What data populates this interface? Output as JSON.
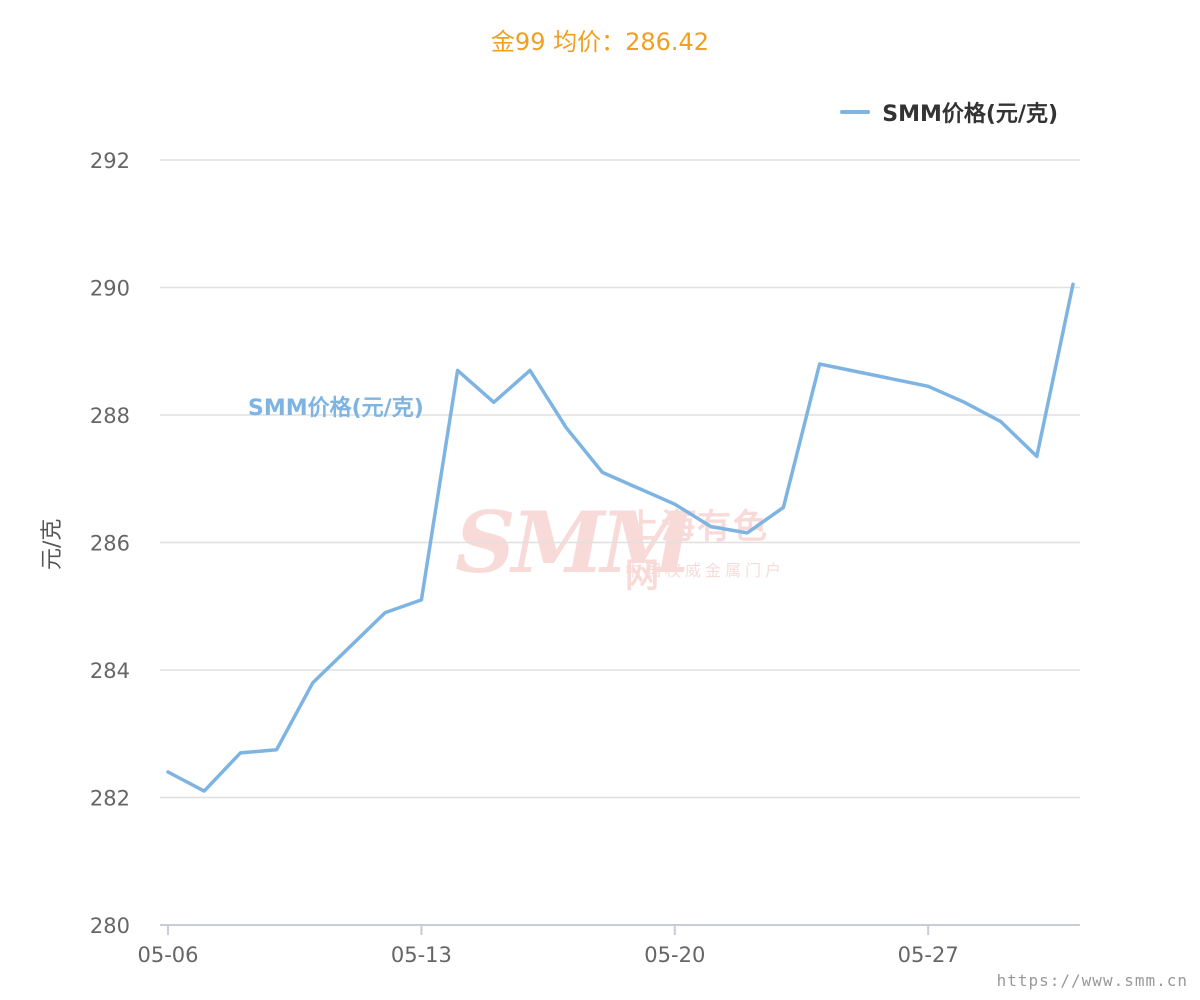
{
  "title": "金99 均价：286.42",
  "legend": {
    "label": "SMM价格(元/克)"
  },
  "series_label": "SMM价格(元/克)",
  "watermark": {
    "big": "SMM",
    "cn": "上海有色网",
    "sub": "中国权威金属门户"
  },
  "url": "https://www.smm.cn",
  "colors": {
    "line": "#7eb4e2",
    "title": "#f0a01e",
    "grid": "#e0e0e0",
    "axis": "#c8ccd4",
    "tick_text": "#666666"
  },
  "chart_data": {
    "type": "line",
    "title": "金99 均价：286.42",
    "ylabel": "元/克",
    "ylim": [
      280,
      292
    ],
    "yticks": [
      280,
      282,
      284,
      286,
      288,
      290,
      292
    ],
    "xtick_labels": [
      "05-06",
      "05-13",
      "05-20",
      "05-27"
    ],
    "xtick_indices": [
      0,
      7,
      14,
      21
    ],
    "grid": true,
    "legend_position": "top-right",
    "series": [
      {
        "name": "SMM价格(元/克)",
        "values": [
          282.4,
          282.1,
          282.7,
          282.75,
          283.8,
          284.9,
          285.1,
          288.7,
          288.2,
          288.7,
          287.8,
          287.1,
          286.6,
          286.25,
          286.15,
          286.55,
          288.8,
          288.45,
          288.2,
          287.9,
          287.35,
          290.05
        ]
      }
    ],
    "x": [
      0,
      1,
      2,
      3,
      4,
      6,
      7,
      8,
      9,
      10,
      11,
      12,
      14,
      15,
      16,
      17,
      18,
      21,
      22,
      23,
      24,
      25
    ]
  }
}
